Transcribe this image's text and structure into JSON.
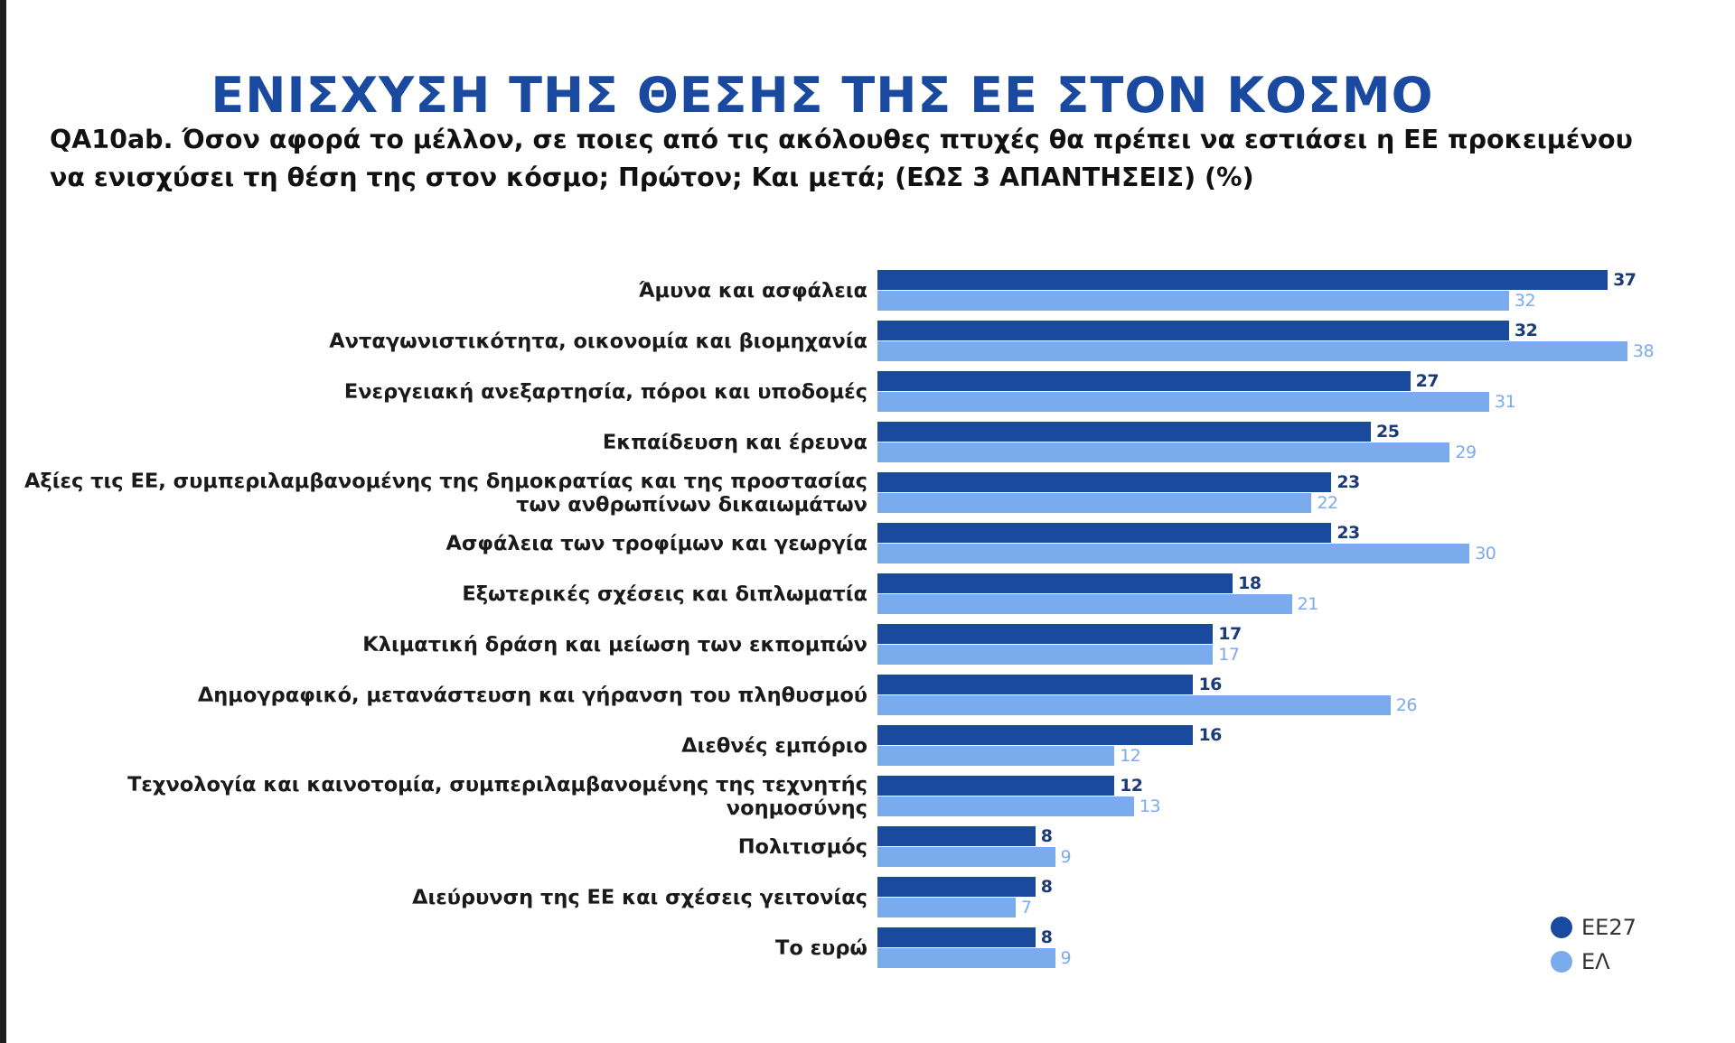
{
  "header": {
    "title": "ΕΝΙΣΧΥΣΗ ΤΗΣ ΘΕΣΗΣ ΤΗΣ ΕΕ ΣΤΟΝ ΚΟΣΜΟ",
    "question_line1": "QA10ab. Όσον αφορά το μέλλον, σε ποιες από τις ακόλουθες πτυχές θα πρέπει να εστιάσει η ΕΕ προκειμένου",
    "question_line2": "να ενισχύσει τη θέση της στον κόσμο; Πρώτον; Και μετά; (ΕΩΣ 3 ΑΠΑΝΤΗΣΕΙΣ) (%)"
  },
  "colors": {
    "ee27": "#1a4a9e",
    "el": "#7aabec",
    "title": "#1a4aa0"
  },
  "legend": [
    {
      "label": "ΕΕ27",
      "color": "#1a4a9e"
    },
    {
      "label": "ΕΛ",
      "color": "#7aabec"
    }
  ],
  "chart_data": {
    "type": "bar",
    "orientation": "horizontal",
    "title": "ΕΝΙΣΧΥΣΗ ΤΗΣ ΘΕΣΗΣ ΤΗΣ ΕΕ ΣΤΟΝ ΚΟΣΜΟ",
    "subtitle": "QA10ab. Όσον αφορά το μέλλον, σε ποιες από τις ακόλουθες πτυχές θα πρέπει να εστιάσει η ΕΕ προκειμένου να ενισχύσει τη θέση της στον κόσμο; Πρώτον; Και μετά; (ΕΩΣ 3 ΑΠΑΝΤΗΣΕΙΣ) (%)",
    "xlabel": "",
    "ylabel": "",
    "grid": false,
    "legend_position": "bottom-right",
    "categories": [
      "Άμυνα και ασφάλεια",
      "Ανταγωνιστικότητα, οικονομία και βιομηχανία",
      "Ενεργειακή ανεξαρτησία, πόροι και υποδομές",
      "Εκπαίδευση και έρευνα",
      "Αξίες τις ΕΕ, συμπεριλαμβανομένης της δημοκρατίας και της προστασίας των ανθρωπίνων δικαιωμάτων",
      "Ασφάλεια των τροφίμων και γεωργία",
      "Εξωτερικές σχέσεις και διπλωματία",
      "Κλιματική δράση και μείωση των εκπομπών",
      "Δημογραφικό, μετανάστευση και γήρανση του πληθυσμού",
      "Διεθνές εμπόριο",
      "Τεχνολογία και καινοτομία, συμπεριλαμβανομένης της τεχνητής νοημοσύνης",
      "Πολιτισμός",
      "Διεύρυνση της ΕΕ και σχέσεις γειτονίας",
      "Το ευρώ"
    ],
    "series": [
      {
        "name": "ΕΕ27",
        "color": "#1a4a9e",
        "values": [
          37,
          32,
          27,
          25,
          23,
          23,
          18,
          17,
          16,
          16,
          12,
          8,
          8,
          8
        ]
      },
      {
        "name": "ΕΛ",
        "color": "#7aabec",
        "values": [
          32,
          38,
          31,
          29,
          22,
          30,
          21,
          17,
          26,
          12,
          13,
          9,
          7,
          9
        ]
      }
    ]
  },
  "rows": [
    {
      "label": "Άμυνα και ασφάλεια",
      "ee27": "37",
      "el": "32"
    },
    {
      "label": "Ανταγωνιστικότητα, οικονομία και βιομηχανία",
      "ee27": "32",
      "el": "38"
    },
    {
      "label": "Ενεργειακή ανεξαρτησία, πόροι και υποδομές",
      "ee27": "27",
      "el": "31"
    },
    {
      "label": "Εκπαίδευση και έρευνα",
      "ee27": "25",
      "el": "29"
    },
    {
      "label": "Αξίες τις ΕΕ, συμπεριλαμβανομένης της δημοκρατίας και της προστασίας",
      "label2": "των ανθρωπίνων δικαιωμάτων",
      "ee27": "23",
      "el": "22"
    },
    {
      "label": "Ασφάλεια των τροφίμων και γεωργία",
      "ee27": "23",
      "el": "30"
    },
    {
      "label": "Εξωτερικές σχέσεις και διπλωματία",
      "ee27": "18",
      "el": "21"
    },
    {
      "label": "Κλιματική δράση και μείωση των εκπομπών",
      "ee27": "17",
      "el": "17"
    },
    {
      "label": "Δημογραφικό, μετανάστευση και γήρανση του πληθυσμού",
      "ee27": "16",
      "el": "26"
    },
    {
      "label": "Διεθνές εμπόριο",
      "ee27": "16",
      "el": "12"
    },
    {
      "label": "Τεχνολογία και καινοτομία, συμπεριλαμβανομένης της τεχνητής νοημοσύνης",
      "ee27": "12",
      "el": "13"
    },
    {
      "label": "Πολιτισμός",
      "ee27": "8",
      "el": "9"
    },
    {
      "label": "Διεύρυνση της ΕΕ και σχέσεις γειτονίας",
      "ee27": "8",
      "el": "7"
    },
    {
      "label": "Το ευρώ",
      "ee27": "8",
      "el": "9"
    }
  ]
}
